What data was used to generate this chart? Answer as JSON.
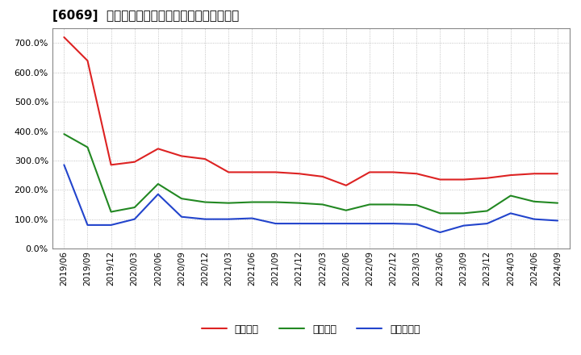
{
  "title": "[6069]  流動比率、当座比率、現預金比率の推移",
  "series_order": [
    "流動比率",
    "当座比率",
    "現預金比率"
  ],
  "series": {
    "流動比率": {
      "color": "#dd2222",
      "values": [
        720,
        640,
        285,
        295,
        340,
        315,
        305,
        260,
        260,
        260,
        255,
        245,
        215,
        260,
        260,
        255,
        235,
        235,
        240,
        250,
        255,
        255
      ]
    },
    "当座比率": {
      "color": "#228822",
      "values": [
        390,
        345,
        125,
        140,
        220,
        170,
        158,
        155,
        158,
        158,
        155,
        150,
        130,
        150,
        150,
        148,
        120,
        120,
        128,
        180,
        160,
        155
      ]
    },
    "現預金比率": {
      "color": "#2244cc",
      "values": [
        285,
        80,
        80,
        100,
        185,
        108,
        100,
        100,
        103,
        85,
        85,
        85,
        85,
        85,
        85,
        83,
        55,
        78,
        85,
        120,
        100,
        95
      ]
    }
  },
  "dates": [
    "2019/06",
    "2019/09",
    "2019/12",
    "2020/03",
    "2020/06",
    "2020/09",
    "2020/12",
    "2021/03",
    "2021/06",
    "2021/09",
    "2021/12",
    "2022/03",
    "2022/06",
    "2022/09",
    "2022/12",
    "2023/03",
    "2023/06",
    "2023/09",
    "2023/12",
    "2024/03",
    "2024/06",
    "2024/09"
  ],
  "ylim": [
    0,
    750
  ],
  "yticks": [
    0,
    100,
    200,
    300,
    400,
    500,
    600,
    700
  ],
  "bg_color": "#ffffff",
  "plot_bg_color": "#ffffff",
  "grid_color": "#aaaaaa",
  "title_fontsize": 11,
  "tick_fontsize": 7.5,
  "ytick_fontsize": 8,
  "linewidth": 1.5
}
